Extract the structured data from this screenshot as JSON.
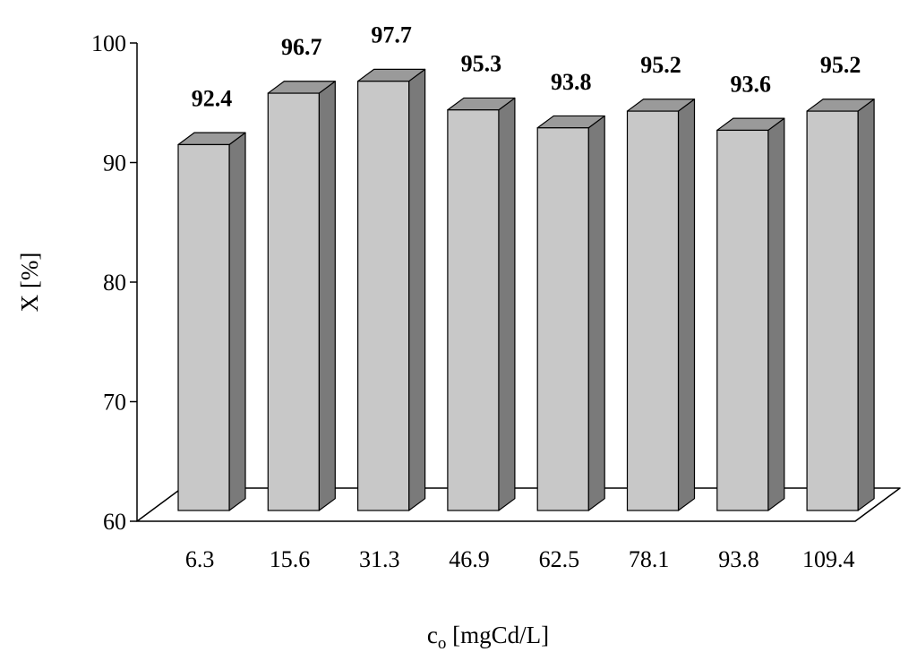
{
  "chart_data": {
    "type": "bar",
    "style": "3d-column",
    "title": "",
    "xlabel": "c",
    "xlabel_subscript": "o",
    "xlabel_unit": " [mgCd/L]",
    "ylabel": "X [%]",
    "categories": [
      "6.3",
      "15.6",
      "31.3",
      "46.9",
      "62.5",
      "78.1",
      "93.8",
      "109.4"
    ],
    "values": [
      92.4,
      96.7,
      97.7,
      95.3,
      93.8,
      95.2,
      93.6,
      95.2
    ],
    "data_labels": [
      "92.4",
      "96.7",
      "97.7",
      "95.3",
      "93.8",
      "95.2",
      "93.6",
      "95.2"
    ],
    "ylim": [
      60,
      100
    ],
    "yticks": [
      60,
      70,
      80,
      90,
      100
    ],
    "ytick_labels": [
      "60",
      "70",
      "80",
      "90",
      "100"
    ],
    "grid": false,
    "legend": "none",
    "colors": {
      "bar_front": "#c8c8c8",
      "bar_top": "#9a9a9a",
      "bar_side": "#7a7a7a",
      "outline": "#000000",
      "floor": "#ffffff"
    }
  }
}
